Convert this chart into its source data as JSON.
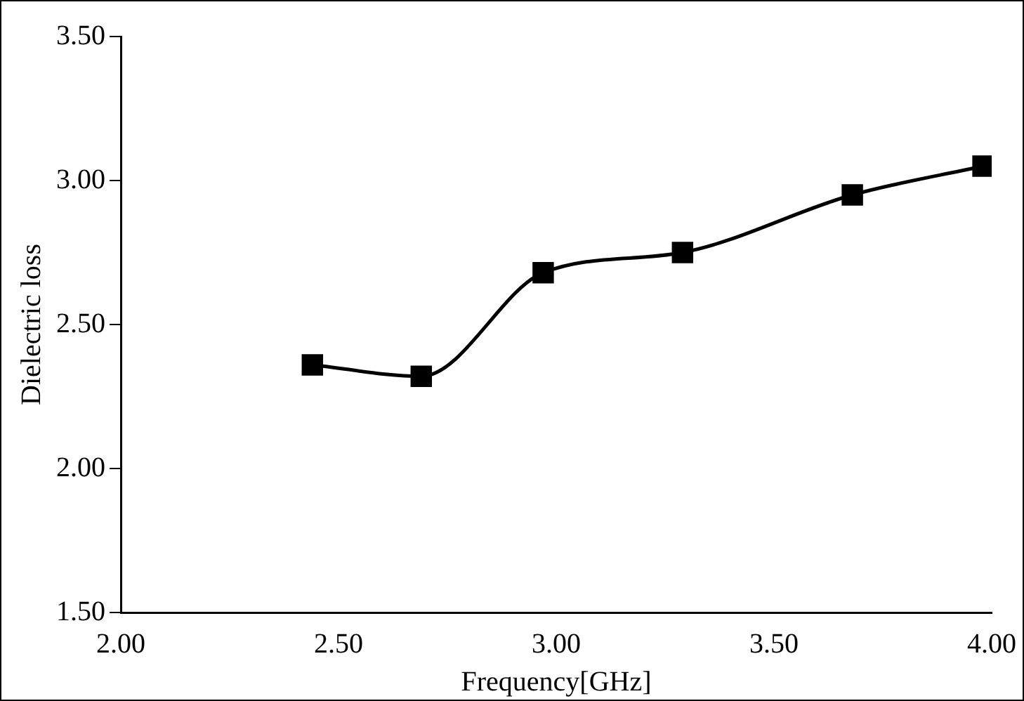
{
  "chart_data": {
    "type": "line",
    "xlabel": "Frequency[GHz]",
    "ylabel": "Dielectric loss",
    "x": [
      2.44,
      2.69,
      2.97,
      3.29,
      3.68,
      3.98
    ],
    "series": [
      {
        "color": "#000000",
        "values": [
          2.36,
          2.32,
          2.68,
          2.75,
          2.95,
          3.05
        ]
      }
    ],
    "xlim": [
      2,
      4
    ],
    "xticks": [
      {
        "value": 2,
        "label": "2.00"
      },
      {
        "value": 2.5,
        "label": "2.50"
      },
      {
        "value": 3,
        "label": "3.00"
      },
      {
        "value": 3.5,
        "label": "3.50"
      },
      {
        "value": 4,
        "label": "4.00"
      }
    ],
    "ylim": [
      1.5,
      3.5
    ],
    "yticks": [
      {
        "value": 1.5,
        "label": "1.50"
      },
      {
        "value": 2,
        "label": "2.00"
      },
      {
        "value": 2.5,
        "label": "2.50"
      },
      {
        "value": 3,
        "label": "3.00"
      },
      {
        "value": 3.5,
        "label": "3.50"
      }
    ],
    "grid": false,
    "legend": false,
    "marker": "square",
    "line_style": "solid"
  }
}
